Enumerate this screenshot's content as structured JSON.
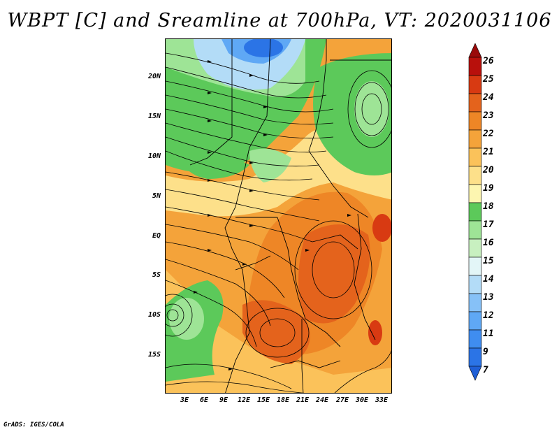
{
  "title": "WBPT [C] and Sreamline at 700hPa, VT: 2020031106",
  "map": {
    "lat_labels": [
      "20N",
      "15N",
      "10N",
      "5N",
      "EQ",
      "5S",
      "10S",
      "15S"
    ],
    "lon_labels": [
      "3E",
      "6E",
      "9E",
      "12E",
      "15E",
      "18E",
      "21E",
      "24E",
      "27E",
      "30E",
      "33E"
    ]
  },
  "colorbar": {
    "levels": [
      "7",
      "9",
      "11",
      "12",
      "13",
      "14",
      "15",
      "16",
      "17",
      "18",
      "19",
      "20",
      "21",
      "22",
      "23",
      "24",
      "25",
      "26"
    ],
    "colors": [
      "#1f5fd6",
      "#2b74e6",
      "#3f8df0",
      "#5fa8f5",
      "#86c1f7",
      "#b3dcf7",
      "#e3f6f7",
      "#c8f0c0",
      "#9ee496",
      "#5cc95a",
      "#fdf6b0",
      "#fde08a",
      "#fbc25a",
      "#f4a33a",
      "#ee8626",
      "#e4631c",
      "#d83a12",
      "#b8100c",
      "#9a0a0a"
    ]
  },
  "credit": "GrADS: IGES/COLA"
}
